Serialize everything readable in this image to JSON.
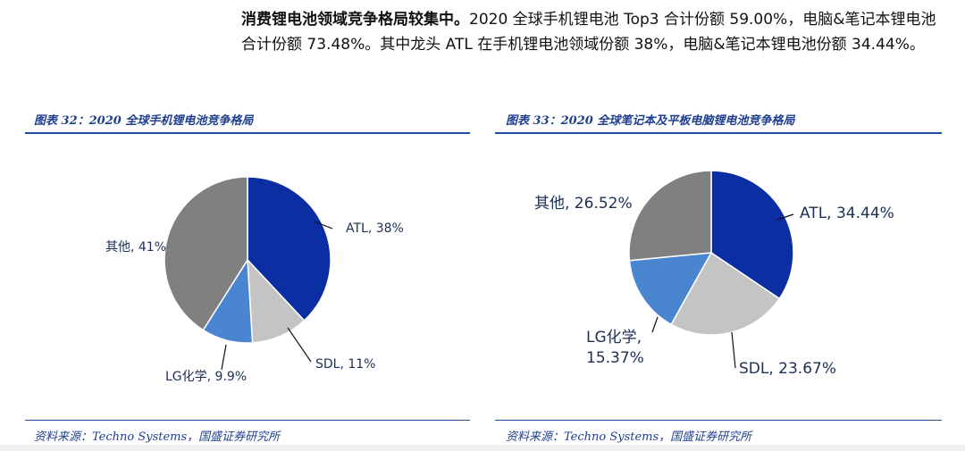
{
  "intro": {
    "bold": "消费锂电池领域竞争格局较集中。",
    "text": "2020 全球手机锂电池 Top3 合计份额 59.00%，电脑&笔记本锂电池合计份额 73.48%。其中龙头 ATL 在手机锂电池领域份额 38%，电脑&笔记本锂电池份额 34.44%。"
  },
  "figures": [
    {
      "title": "图表 32：2020 全球手机锂电池竞争格局",
      "source": "资料来源：Techno Systems，国盛证券研究所"
    },
    {
      "title": "图表 33：2020 全球笔记本及平板电脑锂电池竞争格局",
      "source": "资料来源：Techno Systems，国盛证券研究所"
    }
  ],
  "chart_data": [
    {
      "type": "pie",
      "slices": [
        {
          "name": "ATL",
          "value": 38,
          "label": "ATL, 38%",
          "color": "#0b2fa3"
        },
        {
          "name": "SDL",
          "value": 11,
          "label": "SDL, 11%",
          "color": "#c4c4c4"
        },
        {
          "name": "LG化学",
          "value": 9.9,
          "label": "LG化学, 9.9%",
          "color": "#4a86d0"
        },
        {
          "name": "其他",
          "value": 41,
          "label": "其他, 41%",
          "color": "#808080"
        }
      ]
    },
    {
      "type": "pie",
      "slices": [
        {
          "name": "ATL",
          "value": 34.44,
          "label": "ATL, 34.44%",
          "color": "#0b2fa3"
        },
        {
          "name": "SDL",
          "value": 23.67,
          "label": "SDL, 23.67%",
          "color": "#c4c4c4"
        },
        {
          "name": "LG化学",
          "value": 15.37,
          "label": [
            "LG化学,",
            "15.37%"
          ],
          "color": "#4a86d0"
        },
        {
          "name": "其他",
          "value": 26.52,
          "label": "其他, 26.52%",
          "color": "#808080"
        }
      ]
    }
  ]
}
